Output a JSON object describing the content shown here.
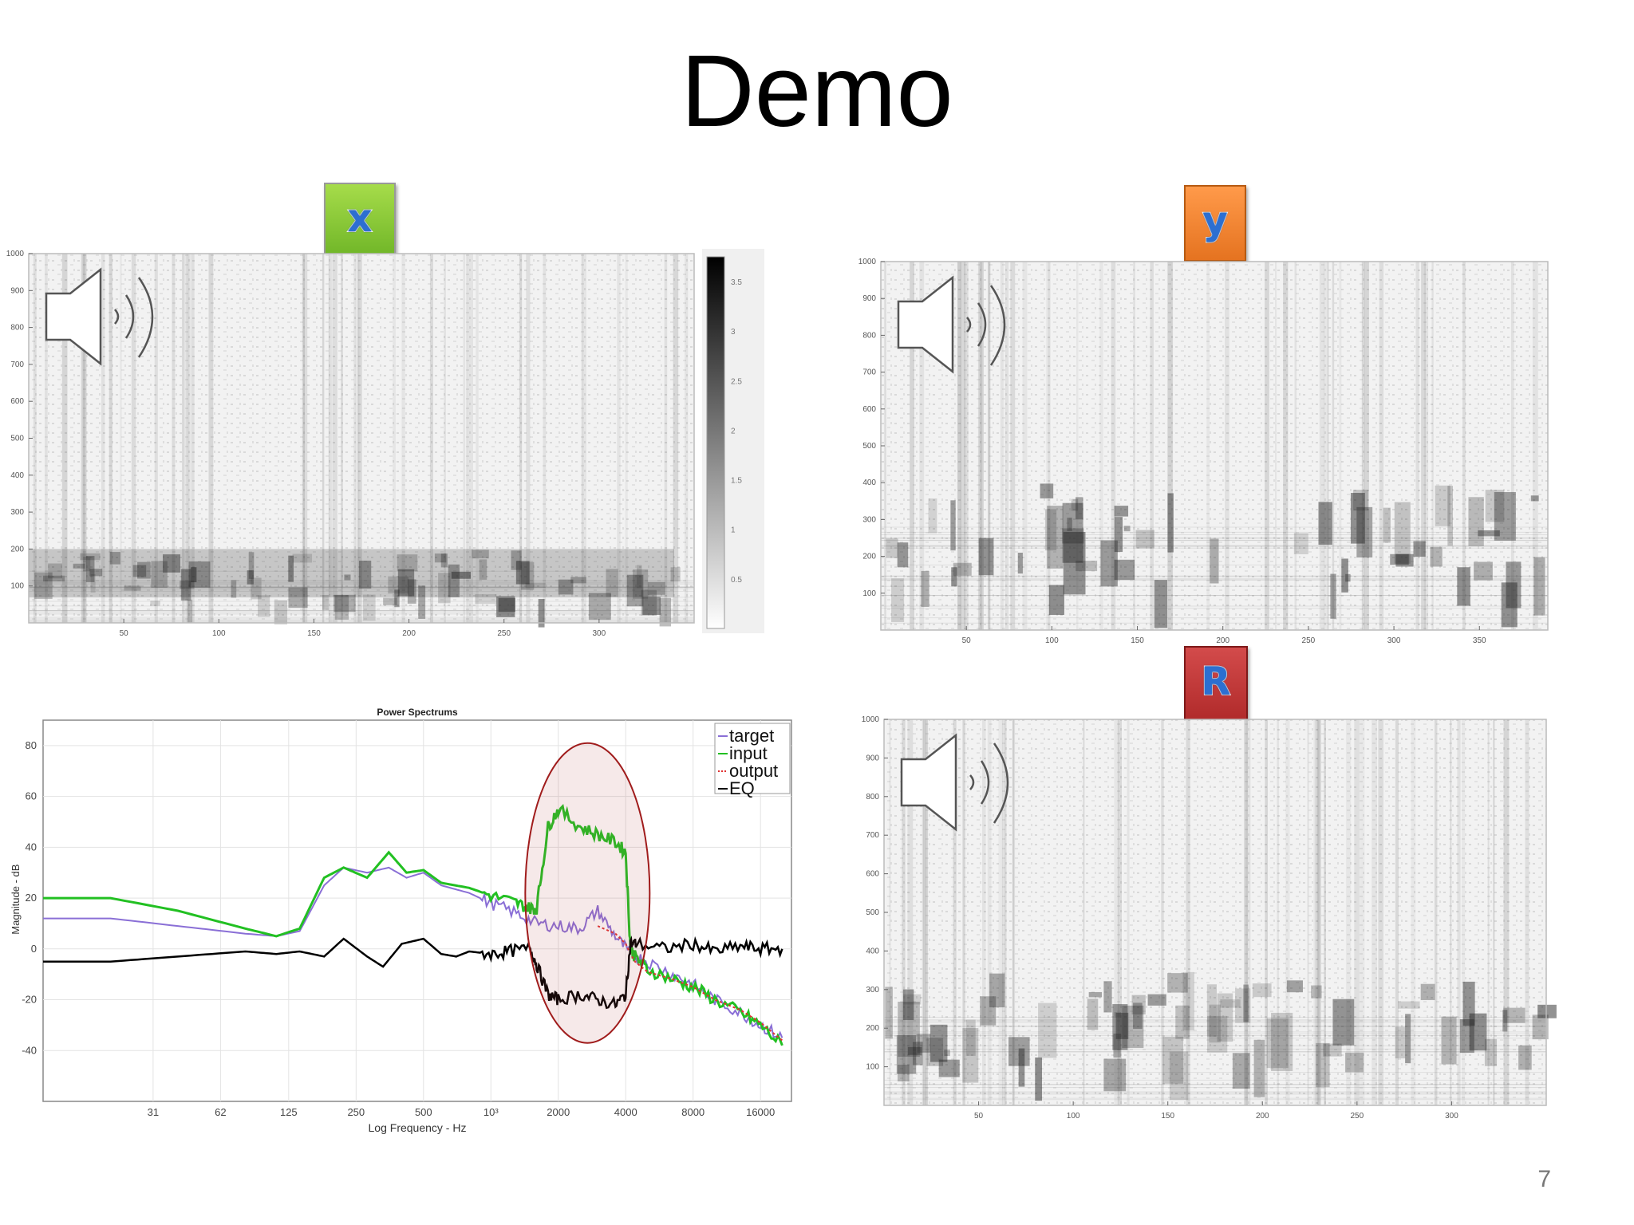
{
  "slide": {
    "title": "Demo",
    "page_number": "7",
    "labels": {
      "x": "x",
      "y": "y",
      "r": "R"
    }
  },
  "chart_data": [
    {
      "type": "heatmap",
      "name": "x",
      "xticks": [
        50,
        100,
        150,
        200,
        250,
        300
      ],
      "yticks": [
        100,
        200,
        300,
        400,
        500,
        600,
        700,
        800,
        900,
        1000
      ],
      "xlim": [
        0,
        350
      ],
      "ylim": [
        0,
        1000
      ],
      "colorbar_ticks": [
        "0.5",
        "1",
        "1.5",
        "2",
        "2.5",
        "3",
        "3.5"
      ],
      "colormap": "gray reversed",
      "speaker_icon": "speaker-icon"
    },
    {
      "type": "heatmap",
      "name": "y",
      "xticks": [
        50,
        100,
        150,
        200,
        250,
        300,
        350
      ],
      "yticks": [
        100,
        200,
        300,
        400,
        500,
        600,
        700,
        800,
        900,
        1000
      ],
      "xlim": [
        0,
        390
      ],
      "ylim": [
        0,
        1000
      ],
      "colormap": "gray reversed",
      "speaker_icon": "speaker-icon"
    },
    {
      "type": "heatmap",
      "name": "R",
      "xticks": [
        50,
        100,
        150,
        200,
        250,
        300
      ],
      "yticks": [
        100,
        200,
        300,
        400,
        500,
        600,
        700,
        800,
        900,
        1000
      ],
      "xlim": [
        0,
        350
      ],
      "ylim": [
        0,
        1000
      ],
      "colormap": "gray reversed",
      "speaker_icon": "speaker-icon"
    },
    {
      "type": "line",
      "title": "Power Spectrums",
      "xlabel": "Log Frequency - Hz",
      "ylabel": "Magnitude - dB",
      "xscale": "log",
      "xlim": [
        10,
        22000
      ],
      "ylim": [
        -60,
        90
      ],
      "xticks": [
        {
          "value": 31,
          "label": "31"
        },
        {
          "value": 62,
          "label": "62"
        },
        {
          "value": 125,
          "label": "125"
        },
        {
          "value": 250,
          "label": "250"
        },
        {
          "value": 500,
          "label": "500"
        },
        {
          "value": 1000,
          "label": "10³"
        },
        {
          "value": 2000,
          "label": "2000"
        },
        {
          "value": 4000,
          "label": "4000"
        },
        {
          "value": 8000,
          "label": "8000"
        },
        {
          "value": 16000,
          "label": "16000"
        }
      ],
      "yticks": [
        -40,
        -20,
        0,
        20,
        40,
        60,
        80
      ],
      "legend": [
        "target",
        "input",
        "output",
        "EQ"
      ],
      "legend_position": "top-right",
      "grid": true,
      "series": [
        {
          "name": "target",
          "color": "#8a6fd6",
          "x": [
            10,
            20,
            40,
            80,
            110,
            140,
            180,
            220,
            280,
            350,
            420,
            500,
            600,
            800,
            1000,
            1300,
            1600,
            2000,
            2500,
            3000,
            3600,
            4200,
            5000,
            6500,
            8000,
            10000,
            13000,
            16000,
            20000
          ],
          "y": [
            12,
            12,
            9,
            6,
            5,
            7,
            25,
            32,
            30,
            32,
            28,
            30,
            25,
            22,
            18,
            14,
            10,
            9,
            8,
            15,
            5,
            -2,
            -5,
            -10,
            -14,
            -20,
            -25,
            -30,
            -35
          ]
        },
        {
          "name": "input",
          "color": "#22c022",
          "x": [
            10,
            20,
            40,
            80,
            110,
            140,
            180,
            220,
            280,
            350,
            420,
            500,
            600,
            800,
            1000,
            1300,
            1500,
            1600,
            1800,
            2000,
            2500,
            3000,
            3600,
            4000,
            4200,
            4400,
            5000,
            6500,
            8000,
            10000,
            13000,
            16000,
            20000
          ],
          "y": [
            20,
            20,
            15,
            8,
            5,
            8,
            28,
            32,
            28,
            38,
            30,
            31,
            26,
            24,
            21,
            18,
            16,
            16,
            48,
            55,
            48,
            45,
            42,
            38,
            0,
            -3,
            -8,
            -12,
            -15,
            -20,
            -25,
            -30,
            -38
          ]
        },
        {
          "name": "output",
          "color": "#e03030",
          "x": [
            3000,
            3600,
            4000,
            4200,
            4400,
            5000,
            6500,
            8000,
            10000,
            13000,
            16000,
            20000
          ],
          "y": [
            9,
            6,
            2,
            -2,
            -5,
            -9,
            -12,
            -15,
            -20,
            -24,
            -29,
            -36
          ]
        },
        {
          "name": "EQ",
          "color": "#000000",
          "x": [
            10,
            20,
            40,
            80,
            110,
            140,
            180,
            220,
            280,
            330,
            400,
            500,
            600,
            700,
            800,
            1000,
            1200,
            1500,
            1600,
            1800,
            2000,
            2500,
            3000,
            3600,
            4000,
            4200,
            4500,
            6000,
            8000,
            10000,
            13000,
            16000,
            20000
          ],
          "y": [
            -5,
            -5,
            -3,
            -1,
            -2,
            -1,
            -3,
            4,
            -3,
            -7,
            2,
            4,
            -2,
            -3,
            -1,
            -2,
            -1,
            0,
            -6,
            -18,
            -20,
            -18,
            -20,
            -22,
            -18,
            2,
            2,
            0,
            2,
            -1,
            1,
            0,
            0
          ]
        }
      ],
      "annotation": "ellipse around 1500–5000 Hz region"
    }
  ]
}
